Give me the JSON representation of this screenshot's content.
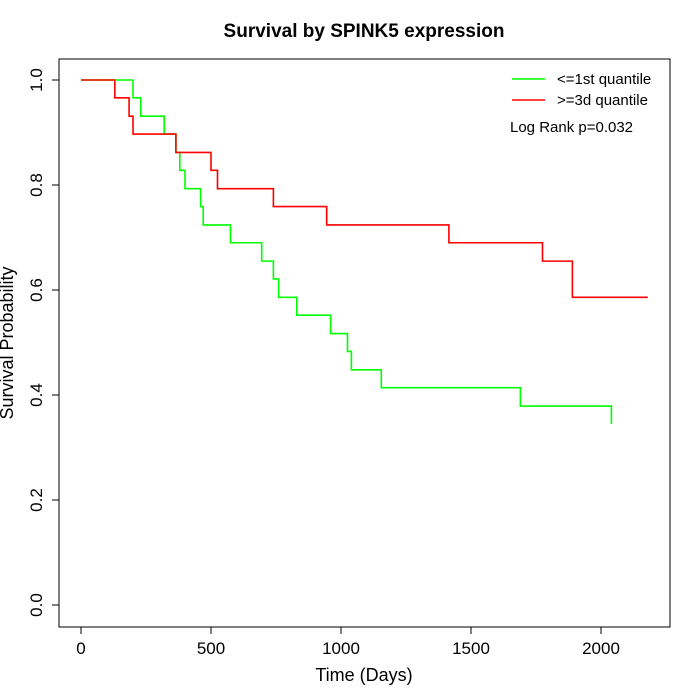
{
  "chart_data": {
    "type": "line",
    "title": "Survival by SPINK5 expression",
    "xlabel": "Time (Days)",
    "ylabel": "Survival Probability",
    "xlim": [
      0,
      2200
    ],
    "ylim": [
      0,
      1
    ],
    "x_ticks": [
      0,
      500,
      1000,
      1500,
      2000
    ],
    "x_tick_labels": [
      "0",
      "500",
      "1000",
      "1500",
      "2000"
    ],
    "y_ticks": [
      0.0,
      0.2,
      0.4,
      0.6,
      0.8,
      1.0
    ],
    "y_tick_labels": [
      "0.0",
      "0.2",
      "0.4",
      "0.6",
      "0.8",
      "1.0"
    ],
    "grid": false,
    "legend_position": "top-right",
    "annotation": "Log Rank p=0.032",
    "series": [
      {
        "name": "<=1st quantile",
        "color": "#00ff00",
        "step": true,
        "x": [
          0,
          200,
          230,
          320,
          365,
          380,
          400,
          460,
          470,
          575,
          695,
          740,
          760,
          830,
          960,
          1025,
          1040,
          1155,
          1690,
          2040
        ],
        "y": [
          1.0,
          0.966,
          0.931,
          0.897,
          0.862,
          0.828,
          0.793,
          0.759,
          0.724,
          0.69,
          0.655,
          0.621,
          0.586,
          0.552,
          0.517,
          0.483,
          0.448,
          0.414,
          0.379,
          0.345
        ]
      },
      {
        "name": ">=3d quantile",
        "color": "#ff0000",
        "step": true,
        "x": [
          0,
          130,
          185,
          200,
          365,
          500,
          525,
          740,
          945,
          1415,
          1775,
          1890,
          2180
        ],
        "y": [
          1.0,
          0.966,
          0.931,
          0.897,
          0.862,
          0.828,
          0.793,
          0.759,
          0.724,
          0.69,
          0.655,
          0.586,
          0.586
        ]
      }
    ]
  }
}
